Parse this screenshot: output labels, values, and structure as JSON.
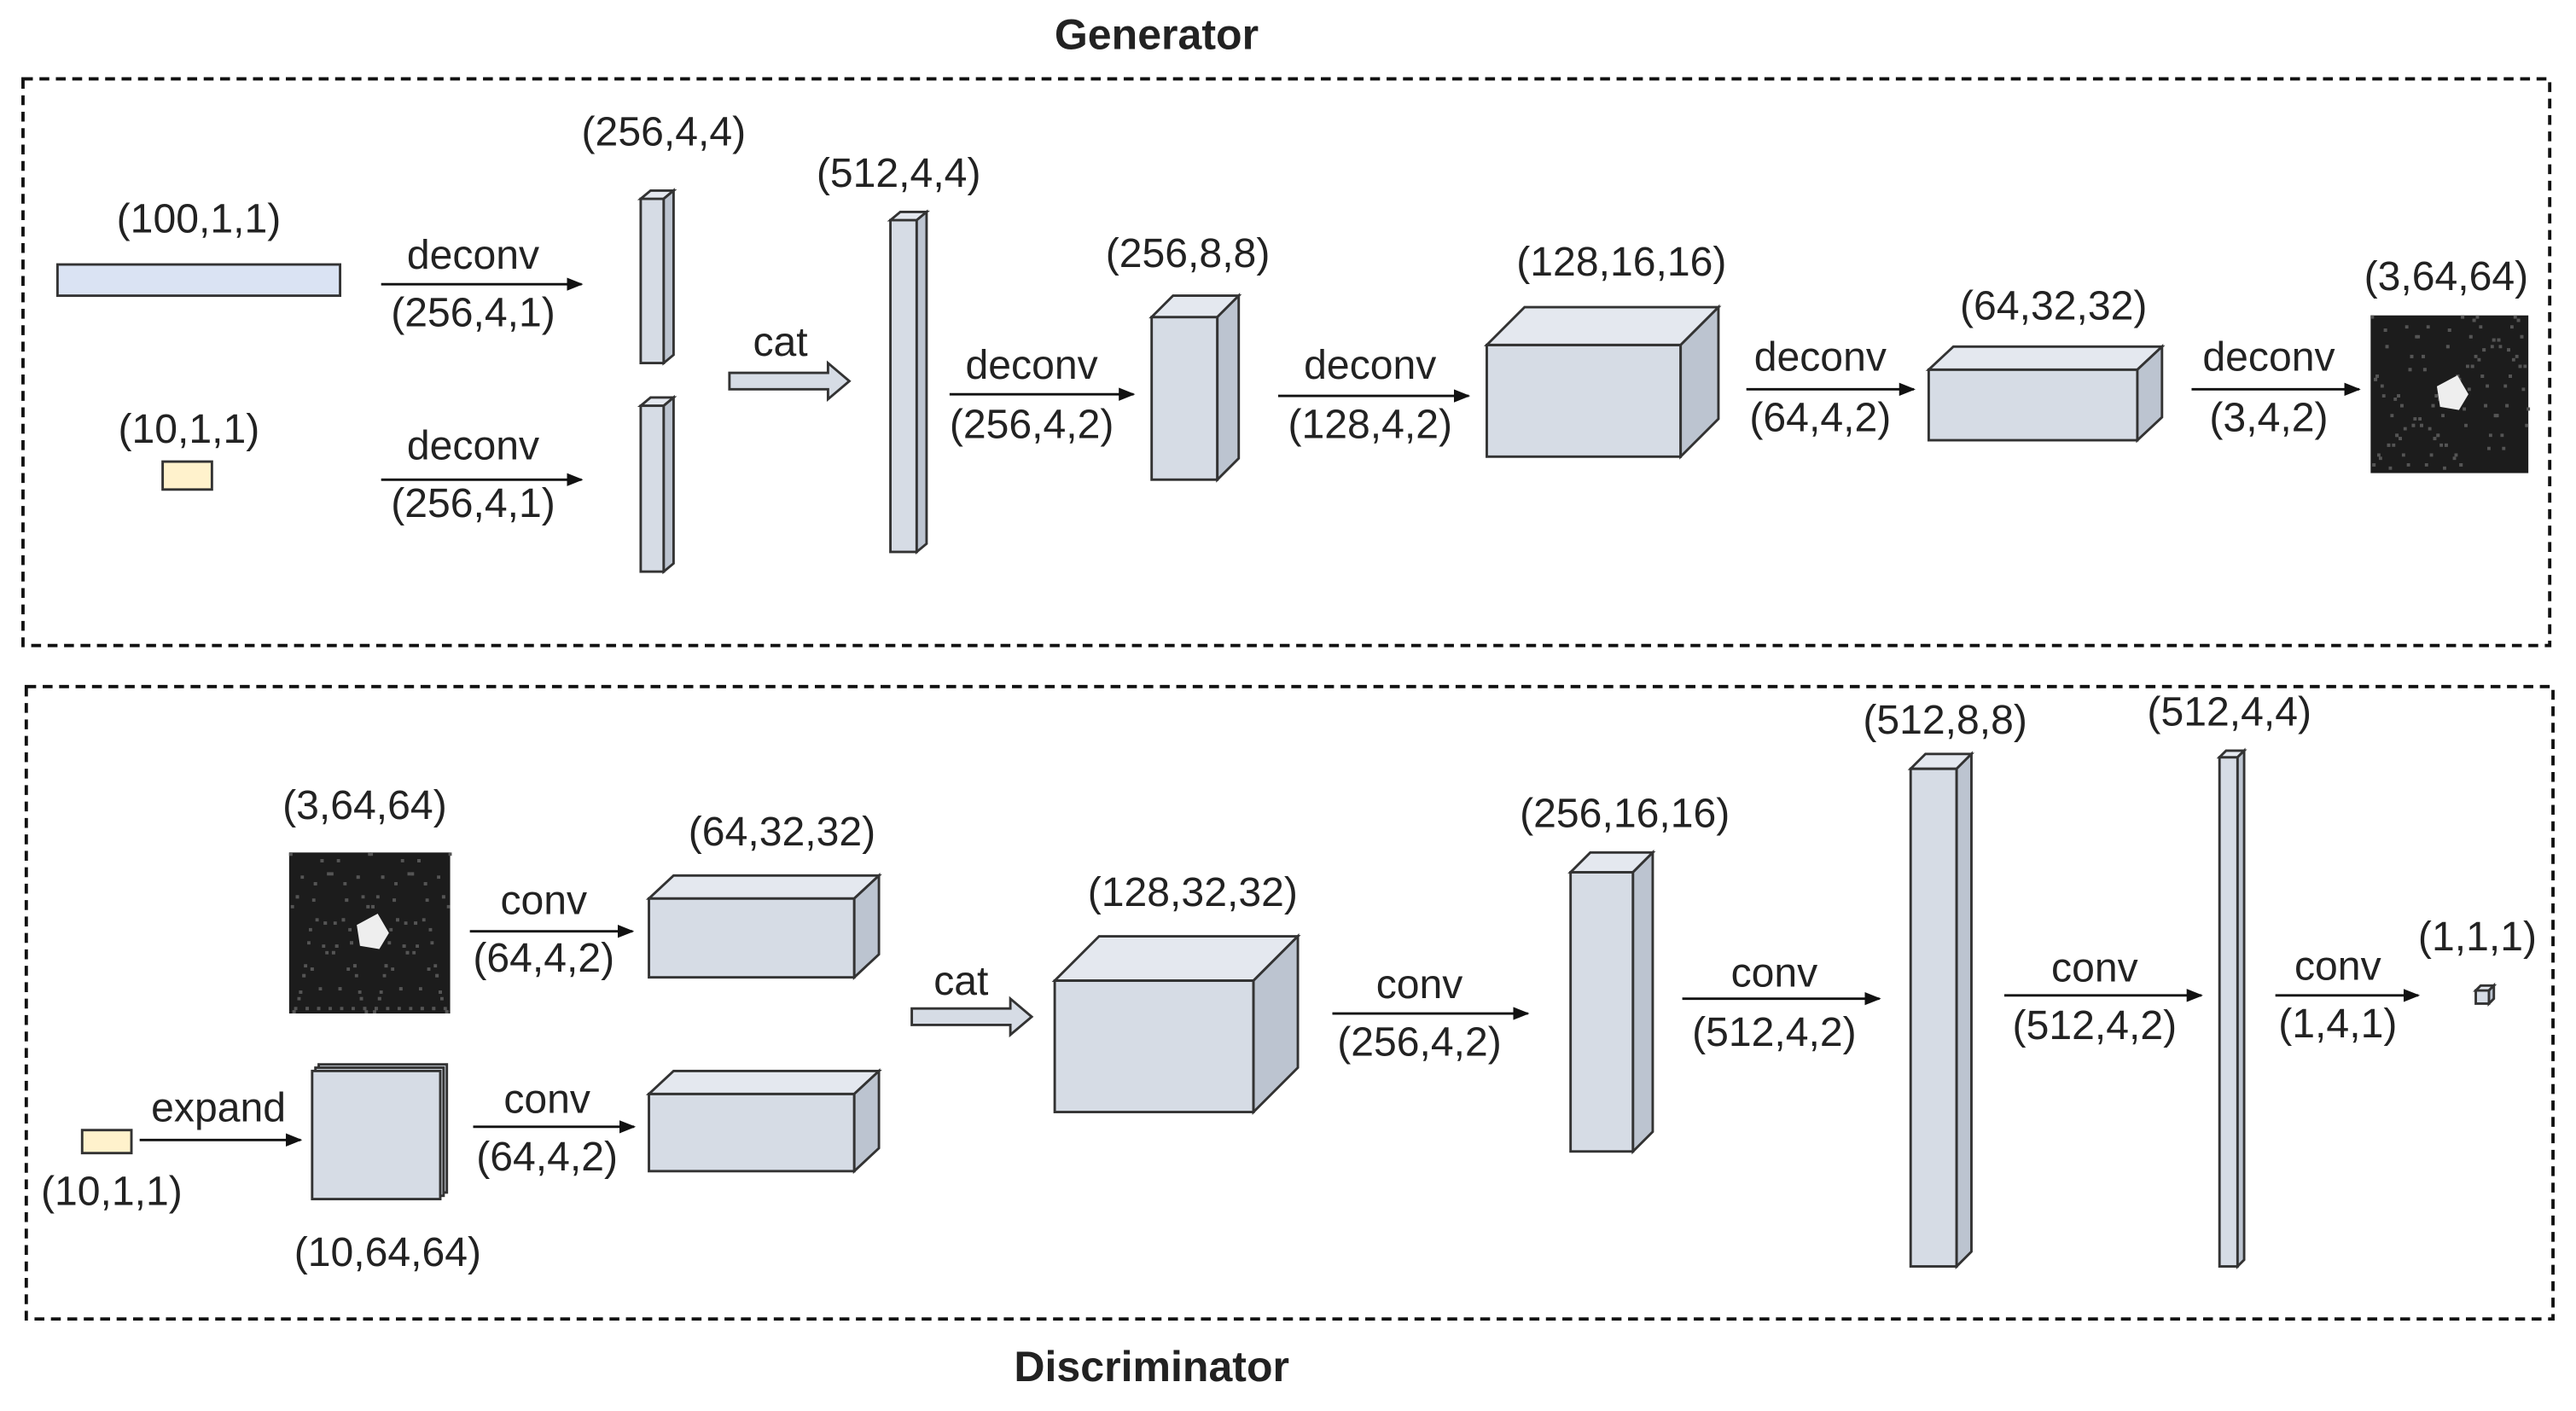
{
  "generator": {
    "title": "Generator",
    "tensors": [
      "(100,1,1)",
      "(10,1,1)",
      "(256,4,4)",
      "(512,4,4)",
      "(256,8,8)",
      "(128,16,16)",
      "(64,32,32)",
      "(3,64,64)"
    ],
    "merge": "cat",
    "ops": [
      {
        "op": "deconv",
        "params": "(256,4,1)"
      },
      {
        "op": "deconv",
        "params": "(256,4,1)"
      },
      {
        "op": "deconv",
        "params": "(256,4,2)"
      },
      {
        "op": "deconv",
        "params": "(128,4,2)"
      },
      {
        "op": "deconv",
        "params": "(64,4,2)"
      },
      {
        "op": "deconv",
        "params": "(3,4,2)"
      }
    ]
  },
  "discriminator": {
    "title": "Discriminator",
    "tensors": [
      "(3,64,64)",
      "(64,32,32)",
      "(10,1,1)",
      "(10,64,64)",
      "(128,32,32)",
      "(256,16,16)",
      "(512,8,8)",
      "(512,4,4)",
      "(1,1,1)"
    ],
    "merge": "cat",
    "expand": "expand",
    "ops": [
      {
        "op": "conv",
        "params": "(64,4,2)"
      },
      {
        "op": "conv",
        "params": "(64,4,2)"
      },
      {
        "op": "conv",
        "params": "(256,4,2)"
      },
      {
        "op": "conv",
        "params": "(512,4,2)"
      },
      {
        "op": "conv",
        "params": "(512,4,2)"
      },
      {
        "op": "conv",
        "params": "(1,4,1)"
      }
    ]
  }
}
